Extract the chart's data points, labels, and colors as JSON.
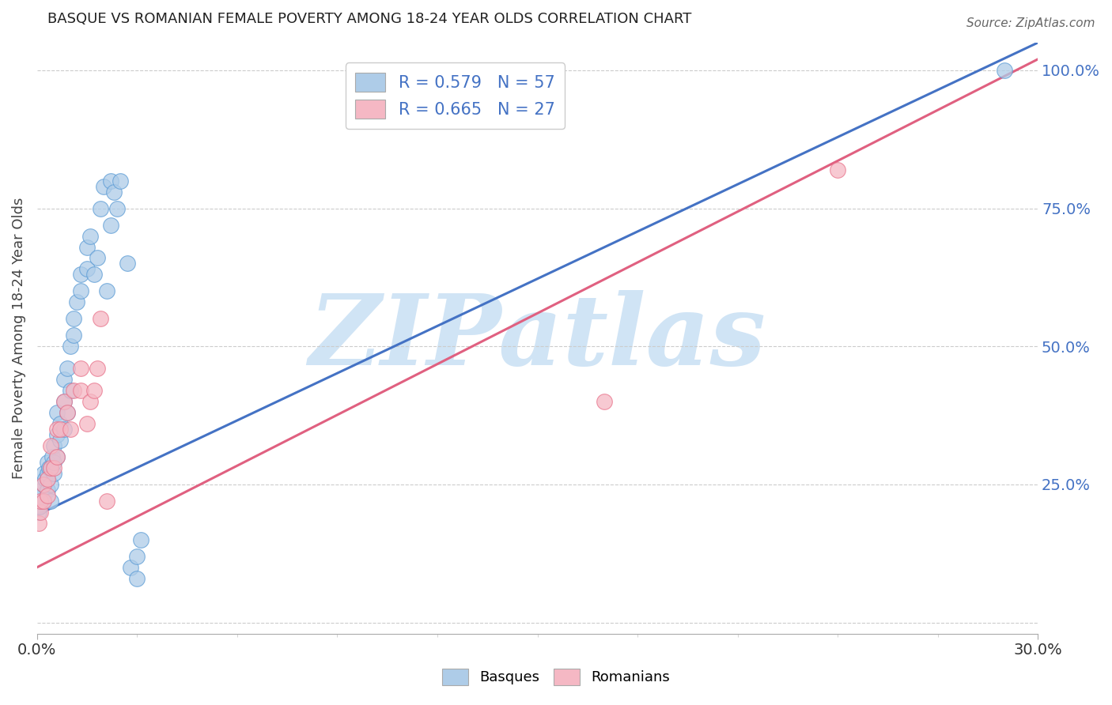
{
  "title": "BASQUE VS ROMANIAN FEMALE POVERTY AMONG 18-24 YEAR OLDS CORRELATION CHART",
  "source": "Source: ZipAtlas.com",
  "ylabel": "Female Poverty Among 18-24 Year Olds",
  "xlim": [
    0.0,
    0.3
  ],
  "ylim": [
    -0.02,
    1.05
  ],
  "yticks": [
    0.0,
    0.25,
    0.5,
    0.75,
    1.0
  ],
  "ytick_labels": [
    "",
    "25.0%",
    "50.0%",
    "75.0%",
    "100.0%"
  ],
  "xtick_labels": [
    "0.0%",
    "30.0%"
  ],
  "basque_color": "#aecce8",
  "romanian_color": "#f5b8c4",
  "basque_edge_color": "#5b9bd5",
  "romanian_edge_color": "#e8728a",
  "basque_line_color": "#4472c4",
  "romanian_line_color": "#e06080",
  "basque_R": "0.579",
  "basque_N": "57",
  "romanian_R": "0.665",
  "romanian_N": "27",
  "watermark": "ZIPatlas",
  "watermark_color": "#d0e4f5",
  "legend_label_basque": "Basques",
  "legend_label_romanian": "Romanians",
  "background_color": "#ffffff",
  "blue_line_x0": 0.0,
  "blue_line_y0": 0.195,
  "blue_line_x1": 0.3,
  "blue_line_y1": 1.05,
  "pink_line_x0": 0.0,
  "pink_line_y0": 0.1,
  "pink_line_x1": 0.3,
  "pink_line_y1": 1.02,
  "basque_x": [
    0.0005,
    0.0008,
    0.001,
    0.001,
    0.0015,
    0.002,
    0.002,
    0.002,
    0.0025,
    0.003,
    0.003,
    0.003,
    0.003,
    0.0035,
    0.004,
    0.004,
    0.004,
    0.0045,
    0.005,
    0.005,
    0.005,
    0.006,
    0.006,
    0.006,
    0.007,
    0.007,
    0.008,
    0.008,
    0.008,
    0.009,
    0.009,
    0.01,
    0.01,
    0.011,
    0.011,
    0.012,
    0.013,
    0.013,
    0.015,
    0.015,
    0.016,
    0.017,
    0.018,
    0.019,
    0.02,
    0.021,
    0.022,
    0.022,
    0.023,
    0.024,
    0.025,
    0.027,
    0.028,
    0.03,
    0.03,
    0.031,
    0.29
  ],
  "basque_y": [
    0.2,
    0.21,
    0.22,
    0.23,
    0.24,
    0.22,
    0.25,
    0.27,
    0.26,
    0.24,
    0.26,
    0.27,
    0.29,
    0.28,
    0.22,
    0.25,
    0.28,
    0.3,
    0.27,
    0.29,
    0.32,
    0.3,
    0.34,
    0.38,
    0.33,
    0.36,
    0.35,
    0.4,
    0.44,
    0.38,
    0.46,
    0.42,
    0.5,
    0.55,
    0.52,
    0.58,
    0.6,
    0.63,
    0.64,
    0.68,
    0.7,
    0.63,
    0.66,
    0.75,
    0.79,
    0.6,
    0.72,
    0.8,
    0.78,
    0.75,
    0.8,
    0.65,
    0.1,
    0.08,
    0.12,
    0.15,
    1.0
  ],
  "romanian_x": [
    0.0005,
    0.001,
    0.001,
    0.002,
    0.002,
    0.003,
    0.003,
    0.004,
    0.004,
    0.005,
    0.006,
    0.006,
    0.007,
    0.008,
    0.009,
    0.01,
    0.011,
    0.013,
    0.013,
    0.015,
    0.016,
    0.017,
    0.018,
    0.019,
    0.021,
    0.17,
    0.24
  ],
  "romanian_y": [
    0.18,
    0.2,
    0.22,
    0.22,
    0.25,
    0.23,
    0.26,
    0.28,
    0.32,
    0.28,
    0.3,
    0.35,
    0.35,
    0.4,
    0.38,
    0.35,
    0.42,
    0.42,
    0.46,
    0.36,
    0.4,
    0.42,
    0.46,
    0.55,
    0.22,
    0.4,
    0.82
  ]
}
